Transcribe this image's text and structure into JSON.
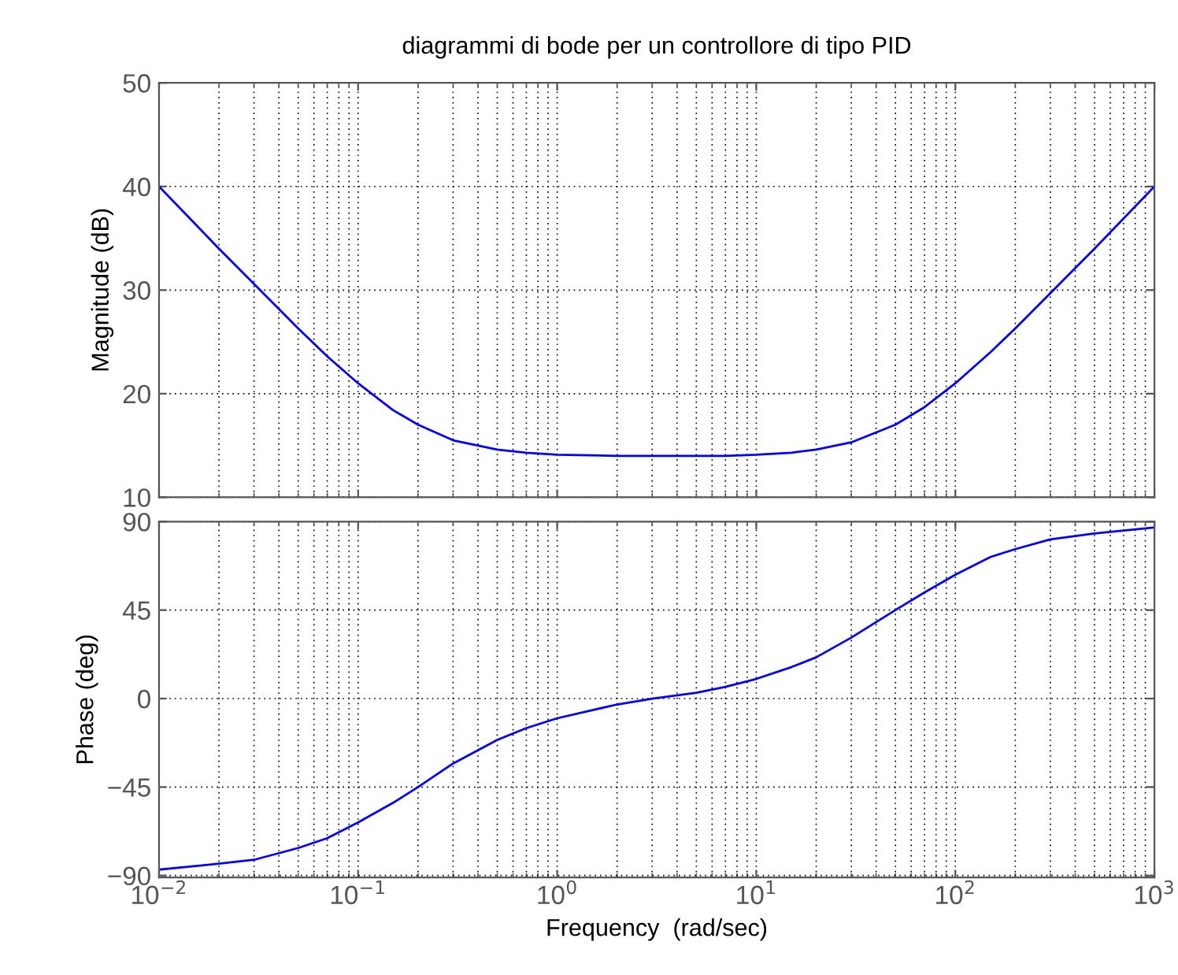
{
  "chart_data": [
    {
      "type": "line",
      "title": "diagrammi di bode per un controllore di tipo PID",
      "ylabel": "Magnitude (dB)",
      "log": "x",
      "grid": true,
      "tick_labels": "y",
      "x": [
        0.01,
        0.02,
        0.03,
        0.05,
        0.07,
        0.1,
        0.15,
        0.2,
        0.3,
        0.5,
        0.7,
        1,
        2,
        3,
        5,
        7,
        10,
        15,
        20,
        30,
        50,
        70,
        100,
        150,
        200,
        300,
        500,
        1000
      ],
      "series": [
        {
          "color": "#0000ff",
          "values": [
            40.0,
            34.0,
            30.6,
            26.3,
            23.6,
            21.0,
            18.4,
            17.0,
            15.5,
            14.6,
            14.3,
            14.1,
            14.0,
            14.0,
            14.0,
            14.0,
            14.1,
            14.3,
            14.6,
            15.3,
            17.0,
            18.7,
            21.0,
            24.0,
            26.3,
            29.7,
            34.0,
            40.0
          ]
        }
      ],
      "xlim": [
        0.01,
        1000
      ],
      "xticks": [
        {
          "value": 0.01,
          "label": null
        },
        {
          "value": 0.1,
          "label": null
        },
        {
          "value": 1,
          "label": null
        },
        {
          "value": 10,
          "label": null
        },
        {
          "value": 100,
          "label": null
        },
        {
          "value": 1000,
          "label": null
        }
      ],
      "ylim": [
        10,
        50
      ],
      "yticks": [
        10,
        20,
        30,
        40,
        50
      ]
    },
    {
      "type": "line",
      "xlabel": "Frequency  (rad/sec)",
      "ylabel": "Phase (deg)",
      "log": "x",
      "grid": true,
      "x": [
        0.01,
        0.02,
        0.03,
        0.05,
        0.07,
        0.1,
        0.15,
        0.2,
        0.3,
        0.5,
        0.7,
        1,
        2,
        3,
        5,
        7,
        10,
        15,
        20,
        30,
        50,
        70,
        100,
        150,
        200,
        300,
        500,
        1000
      ],
      "series": [
        {
          "color": "#0000ff",
          "values": [
            -87,
            -84,
            -82,
            -76,
            -71,
            -63,
            -53,
            -45,
            -33,
            -21,
            -15,
            -10,
            -3,
            0,
            3,
            6,
            10,
            16,
            21,
            31,
            45,
            54,
            63,
            72,
            76,
            81,
            84,
            87
          ]
        }
      ],
      "xlim": [
        0.01,
        1000
      ],
      "xticks": [
        {
          "value": 0.01,
          "label": "10$^{−2}$"
        },
        {
          "value": 0.1,
          "label": "10$^{−1}$"
        },
        {
          "value": 1,
          "label": "10$^{0}$"
        },
        {
          "value": 10,
          "label": "10$^{1}$"
        },
        {
          "value": 100,
          "label": "10$^{2}$"
        },
        {
          "value": 1000,
          "label": "10$^{3}$"
        }
      ],
      "ylim": [
        -91,
        90
      ],
      "yticks": [
        {
          "value": -90,
          "label": "−90"
        },
        {
          "value": -45,
          "label": "−45"
        },
        0,
        45,
        90
      ]
    }
  ]
}
